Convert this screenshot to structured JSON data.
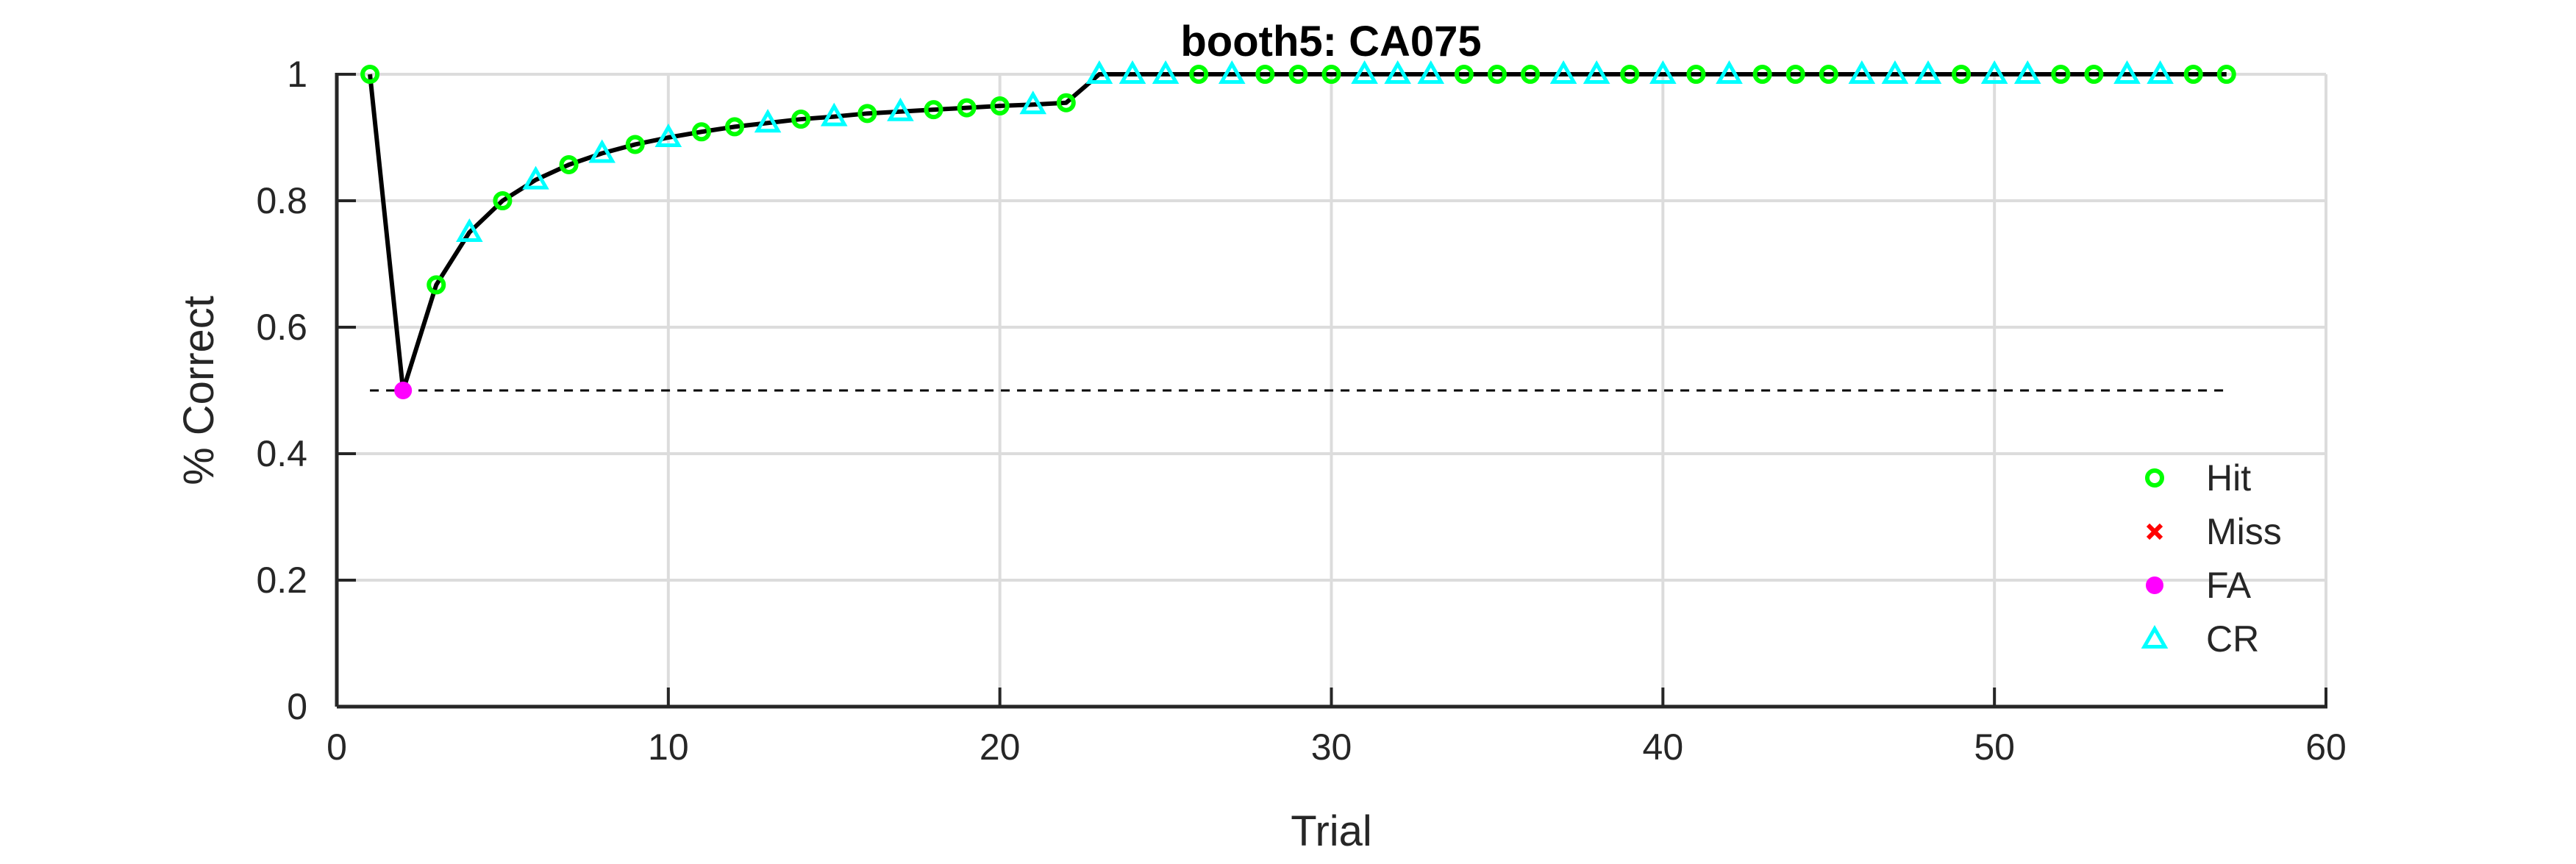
{
  "chart_data": {
    "type": "line",
    "title": "booth5: CA075",
    "xlabel": "Trial",
    "ylabel": "% Correct",
    "xlim": [
      0,
      60
    ],
    "ylim": [
      0,
      1
    ],
    "x_ticks": [
      "0",
      "10",
      "20",
      "30",
      "40",
      "50",
      "60"
    ],
    "y_ticks": [
      "0",
      "0.2",
      "0.4",
      "0.6",
      "0.8",
      "1"
    ],
    "grid": true,
    "legend_position": "bottom-right",
    "chance_line": {
      "y": 0.5,
      "x_range": [
        1,
        57
      ],
      "style": "dashed"
    },
    "colors": {
      "line": "#000000",
      "Hit": "#00ff00",
      "Miss": "#ff0000",
      "FA": "#ff00ff",
      "CR": "#00ffff",
      "grid": "#dcdcdc",
      "axis": "#262626"
    },
    "legend": [
      "Hit",
      "Miss",
      "FA",
      "CR"
    ],
    "points": [
      {
        "x": 1,
        "y": 1.0,
        "type": "Hit"
      },
      {
        "x": 2,
        "y": 0.5,
        "type": "FA"
      },
      {
        "x": 3,
        "y": 0.667,
        "type": "Hit"
      },
      {
        "x": 4,
        "y": 0.75,
        "type": "CR"
      },
      {
        "x": 5,
        "y": 0.8,
        "type": "Hit"
      },
      {
        "x": 6,
        "y": 0.833,
        "type": "CR"
      },
      {
        "x": 7,
        "y": 0.857,
        "type": "Hit"
      },
      {
        "x": 8,
        "y": 0.875,
        "type": "CR"
      },
      {
        "x": 9,
        "y": 0.889,
        "type": "Hit"
      },
      {
        "x": 10,
        "y": 0.9,
        "type": "CR"
      },
      {
        "x": 11,
        "y": 0.909,
        "type": "Hit"
      },
      {
        "x": 12,
        "y": 0.917,
        "type": "Hit"
      },
      {
        "x": 13,
        "y": 0.923,
        "type": "CR"
      },
      {
        "x": 14,
        "y": 0.929,
        "type": "Hit"
      },
      {
        "x": 15,
        "y": 0.933,
        "type": "CR"
      },
      {
        "x": 16,
        "y": 0.938,
        "type": "Hit"
      },
      {
        "x": 17,
        "y": 0.941,
        "type": "CR"
      },
      {
        "x": 18,
        "y": 0.944,
        "type": "Hit"
      },
      {
        "x": 19,
        "y": 0.947,
        "type": "Hit"
      },
      {
        "x": 20,
        "y": 0.95,
        "type": "Hit"
      },
      {
        "x": 21,
        "y": 0.952,
        "type": "CR"
      },
      {
        "x": 22,
        "y": 0.955,
        "type": "Hit"
      },
      {
        "x": 23,
        "y": 1.0,
        "type": "CR"
      },
      {
        "x": 24,
        "y": 1.0,
        "type": "CR"
      },
      {
        "x": 25,
        "y": 1.0,
        "type": "CR"
      },
      {
        "x": 26,
        "y": 1.0,
        "type": "Hit"
      },
      {
        "x": 27,
        "y": 1.0,
        "type": "CR"
      },
      {
        "x": 28,
        "y": 1.0,
        "type": "Hit"
      },
      {
        "x": 29,
        "y": 1.0,
        "type": "Hit"
      },
      {
        "x": 30,
        "y": 1.0,
        "type": "Hit"
      },
      {
        "x": 31,
        "y": 1.0,
        "type": "CR"
      },
      {
        "x": 32,
        "y": 1.0,
        "type": "CR"
      },
      {
        "x": 33,
        "y": 1.0,
        "type": "CR"
      },
      {
        "x": 34,
        "y": 1.0,
        "type": "Hit"
      },
      {
        "x": 35,
        "y": 1.0,
        "type": "Hit"
      },
      {
        "x": 36,
        "y": 1.0,
        "type": "Hit"
      },
      {
        "x": 37,
        "y": 1.0,
        "type": "CR"
      },
      {
        "x": 38,
        "y": 1.0,
        "type": "CR"
      },
      {
        "x": 39,
        "y": 1.0,
        "type": "Hit"
      },
      {
        "x": 40,
        "y": 1.0,
        "type": "CR"
      },
      {
        "x": 41,
        "y": 1.0,
        "type": "Hit"
      },
      {
        "x": 42,
        "y": 1.0,
        "type": "CR"
      },
      {
        "x": 43,
        "y": 1.0,
        "type": "Hit"
      },
      {
        "x": 44,
        "y": 1.0,
        "type": "Hit"
      },
      {
        "x": 45,
        "y": 1.0,
        "type": "Hit"
      },
      {
        "x": 46,
        "y": 1.0,
        "type": "CR"
      },
      {
        "x": 47,
        "y": 1.0,
        "type": "CR"
      },
      {
        "x": 48,
        "y": 1.0,
        "type": "CR"
      },
      {
        "x": 49,
        "y": 1.0,
        "type": "Hit"
      },
      {
        "x": 50,
        "y": 1.0,
        "type": "CR"
      },
      {
        "x": 51,
        "y": 1.0,
        "type": "CR"
      },
      {
        "x": 52,
        "y": 1.0,
        "type": "Hit"
      },
      {
        "x": 53,
        "y": 1.0,
        "type": "Hit"
      },
      {
        "x": 54,
        "y": 1.0,
        "type": "CR"
      },
      {
        "x": 55,
        "y": 1.0,
        "type": "CR"
      },
      {
        "x": 56,
        "y": 1.0,
        "type": "Hit"
      },
      {
        "x": 57,
        "y": 1.0,
        "type": "Hit"
      }
    ]
  }
}
